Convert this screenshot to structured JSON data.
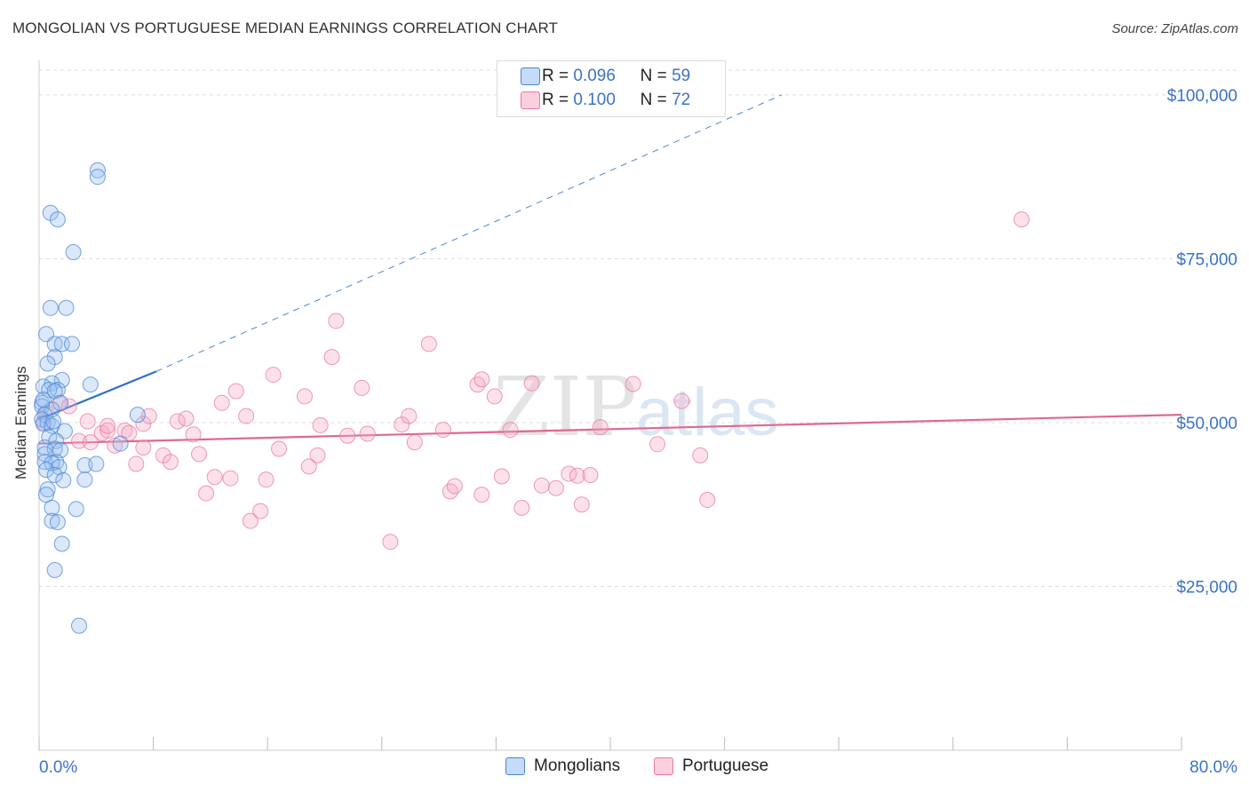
{
  "title": "MONGOLIAN VS PORTUGUESE MEDIAN EARNINGS CORRELATION CHART",
  "source": "Source: ZipAtlas.com",
  "watermark": {
    "zip": "ZIP",
    "atlas": "atlas"
  },
  "colors": {
    "blue": "#4a86d4",
    "blue_fill": "rgba(150,190,240,0.35)",
    "pink": "#e8799c",
    "pink_fill": "rgba(245,170,195,0.35)",
    "axis_text": "#3a73c4",
    "grid": "#dcdcdc"
  },
  "legend": {
    "rows": [
      {
        "r_label": "R =",
        "r_value": "0.096",
        "n_label": "N =",
        "n_value": "59"
      },
      {
        "r_label": "R =",
        "r_value": "0.100",
        "n_label": "N =",
        "n_value": "72"
      }
    ]
  },
  "bottom_legend": {
    "mongolians": "Mongolians",
    "portuguese": "Portuguese"
  },
  "chart_data": {
    "type": "scatter",
    "title": "MONGOLIAN VS PORTUGUESE MEDIAN EARNINGS CORRELATION CHART",
    "xlabel": "",
    "ylabel": "Median Earnings",
    "xlim": [
      0,
      80
    ],
    "ylim": [
      0,
      105000
    ],
    "x_tick_labels": [
      "0.0%",
      "80.0%"
    ],
    "y_ticks": [
      25000,
      50000,
      75000,
      100000
    ],
    "y_tick_labels": [
      "$25,000",
      "$50,000",
      "$75,000",
      "$100,000"
    ],
    "series": [
      {
        "name": "Mongolians",
        "r": 0.096,
        "n": 59,
        "trend": {
          "x0": 0,
          "y0": 50500,
          "x1": 8.2,
          "y1": 57800,
          "dash_to_x": 52,
          "dash_to_y": 100000
        },
        "points": [
          [
            4.1,
            88500
          ],
          [
            4.1,
            87500
          ],
          [
            0.8,
            82000
          ],
          [
            1.3,
            81000
          ],
          [
            2.4,
            76000
          ],
          [
            0.8,
            67500
          ],
          [
            1.9,
            67500
          ],
          [
            0.5,
            63500
          ],
          [
            1.1,
            62000
          ],
          [
            1.6,
            62000
          ],
          [
            2.3,
            62000
          ],
          [
            1.1,
            60000
          ],
          [
            0.6,
            59000
          ],
          [
            1.6,
            56500
          ],
          [
            0.9,
            56000
          ],
          [
            3.6,
            55800
          ],
          [
            0.3,
            55500
          ],
          [
            1.3,
            55000
          ],
          [
            0.7,
            55000
          ],
          [
            1.1,
            54800
          ],
          [
            0.2,
            53000
          ],
          [
            1.5,
            53000
          ],
          [
            0.2,
            52500
          ],
          [
            0.9,
            52000
          ],
          [
            0.4,
            51200
          ],
          [
            6.9,
            51200
          ],
          [
            0.2,
            50500
          ],
          [
            0.6,
            50000
          ],
          [
            0.3,
            49800
          ],
          [
            0.9,
            49500
          ],
          [
            1.8,
            48700
          ],
          [
            0.7,
            47800
          ],
          [
            1.2,
            47200
          ],
          [
            0.4,
            46200
          ],
          [
            5.7,
            46800
          ],
          [
            1.1,
            46000
          ],
          [
            1.5,
            45800
          ],
          [
            0.4,
            45200
          ],
          [
            1.2,
            44000
          ],
          [
            0.4,
            44000
          ],
          [
            0.9,
            43800
          ],
          [
            3.2,
            43500
          ],
          [
            4.0,
            43700
          ],
          [
            1.4,
            43200
          ],
          [
            0.5,
            42800
          ],
          [
            1.1,
            42000
          ],
          [
            1.7,
            41200
          ],
          [
            3.2,
            41300
          ],
          [
            0.6,
            39800
          ],
          [
            0.5,
            39000
          ],
          [
            0.9,
            37000
          ],
          [
            2.6,
            36800
          ],
          [
            0.9,
            35000
          ],
          [
            1.3,
            34800
          ],
          [
            1.6,
            31500
          ],
          [
            1.1,
            27500
          ],
          [
            2.8,
            19000
          ],
          [
            0.3,
            53500
          ],
          [
            1.0,
            50200
          ]
        ]
      },
      {
        "name": "Portuguese",
        "r": 0.1,
        "n": 72,
        "trend": {
          "x0": 0,
          "y0": 46800,
          "x1": 80,
          "y1": 51200
        },
        "points": [
          [
            0.3,
            50000
          ],
          [
            0.5,
            51500
          ],
          [
            1.4,
            53000
          ],
          [
            2.1,
            52500
          ],
          [
            2.8,
            47200
          ],
          [
            3.4,
            50200
          ],
          [
            3.6,
            47000
          ],
          [
            4.4,
            48400
          ],
          [
            4.8,
            48800
          ],
          [
            5.3,
            46500
          ],
          [
            6.0,
            48800
          ],
          [
            6.3,
            48400
          ],
          [
            6.8,
            43700
          ],
          [
            7.3,
            49800
          ],
          [
            7.7,
            51000
          ],
          [
            7.3,
            46200
          ],
          [
            8.7,
            45000
          ],
          [
            9.2,
            44000
          ],
          [
            9.7,
            50200
          ],
          [
            10.3,
            50600
          ],
          [
            10.8,
            48200
          ],
          [
            11.2,
            45200
          ],
          [
            11.7,
            39200
          ],
          [
            12.3,
            41700
          ],
          [
            12.8,
            53000
          ],
          [
            13.4,
            41500
          ],
          [
            13.8,
            54800
          ],
          [
            14.5,
            51000
          ],
          [
            14.8,
            35000
          ],
          [
            15.5,
            36500
          ],
          [
            15.9,
            41300
          ],
          [
            16.4,
            57300
          ],
          [
            16.8,
            46000
          ],
          [
            18.6,
            54000
          ],
          [
            18.9,
            43300
          ],
          [
            19.5,
            45000
          ],
          [
            19.7,
            49600
          ],
          [
            20.5,
            60000
          ],
          [
            20.8,
            65500
          ],
          [
            21.6,
            48000
          ],
          [
            22.6,
            55300
          ],
          [
            23.0,
            48300
          ],
          [
            24.6,
            31800
          ],
          [
            25.4,
            49700
          ],
          [
            25.9,
            51000
          ],
          [
            26.3,
            47000
          ],
          [
            27.3,
            62000
          ],
          [
            28.3,
            48900
          ],
          [
            28.8,
            39500
          ],
          [
            29.1,
            40300
          ],
          [
            30.7,
            55800
          ],
          [
            31.0,
            56600
          ],
          [
            31.0,
            39000
          ],
          [
            31.9,
            54000
          ],
          [
            32.4,
            41800
          ],
          [
            33.0,
            48900
          ],
          [
            33.8,
            37000
          ],
          [
            34.5,
            56000
          ],
          [
            35.2,
            40400
          ],
          [
            36.2,
            40000
          ],
          [
            37.1,
            42200
          ],
          [
            37.7,
            41900
          ],
          [
            38.0,
            37500
          ],
          [
            38.6,
            42000
          ],
          [
            39.3,
            49300
          ],
          [
            41.6,
            55900
          ],
          [
            43.3,
            46700
          ],
          [
            45.0,
            53300
          ],
          [
            46.3,
            45000
          ],
          [
            46.8,
            38200
          ],
          [
            68.8,
            81000
          ],
          [
            4.8,
            49500
          ]
        ]
      }
    ]
  }
}
